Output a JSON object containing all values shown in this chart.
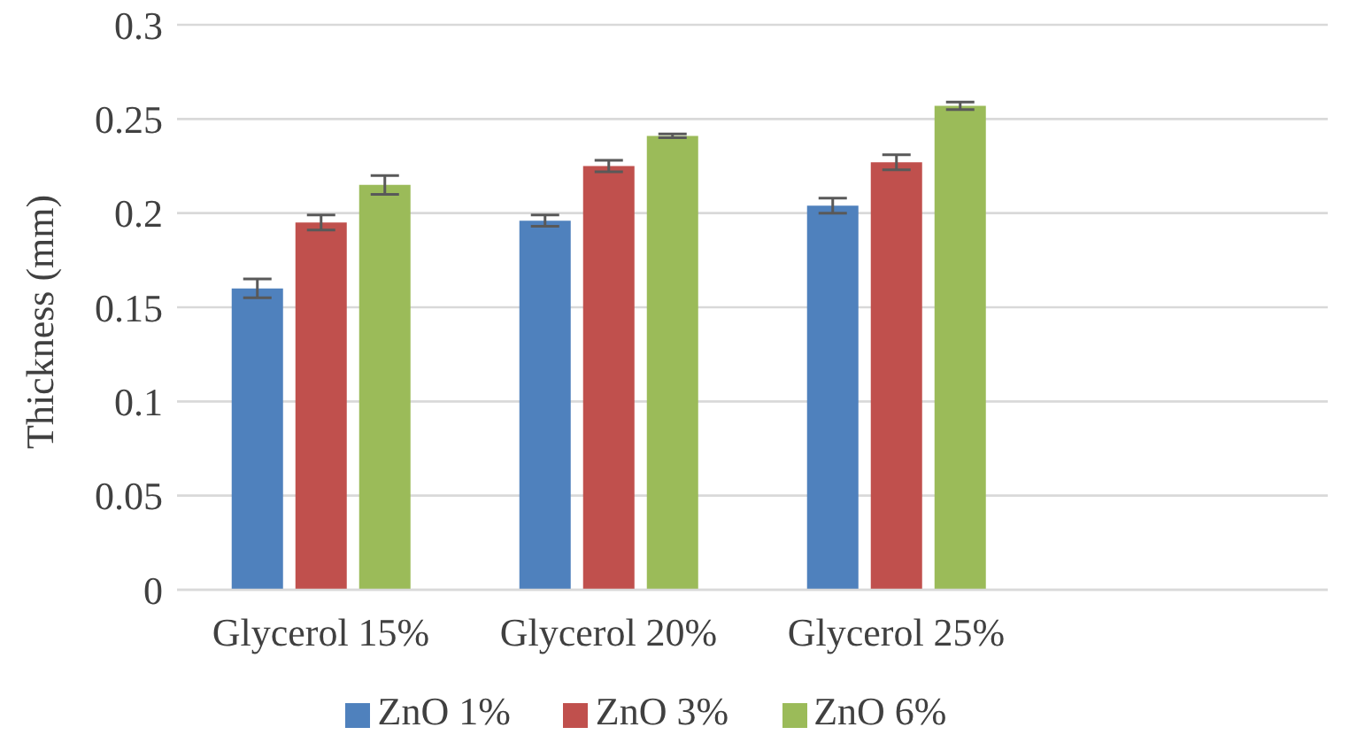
{
  "chart_data": {
    "type": "bar",
    "ylabel": "Thickness (mm)",
    "categories": [
      "Glycerol 15%",
      "Glycerol 20%",
      "Glycerol 25%",
      null
    ],
    "series": [
      {
        "name": "ZnO 1%",
        "color": "#4f81bd",
        "values": [
          0.16,
          0.196,
          0.204,
          null
        ],
        "errors": [
          0.005,
          0.003,
          0.004,
          null
        ]
      },
      {
        "name": "ZnO 3%",
        "color": "#c0504d",
        "values": [
          0.195,
          0.225,
          0.227,
          null
        ],
        "errors": [
          0.004,
          0.003,
          0.004,
          null
        ]
      },
      {
        "name": "ZnO 6%",
        "color": "#9bbb59",
        "values": [
          0.215,
          0.241,
          0.257,
          null
        ],
        "errors": [
          0.005,
          0.001,
          0.002,
          null
        ]
      }
    ],
    "ylim": [
      0,
      0.3
    ],
    "yticks": [
      0,
      0.05,
      0.1,
      0.15,
      0.2,
      0.25,
      0.3
    ],
    "grid": "y",
    "legend": "bottom"
  }
}
